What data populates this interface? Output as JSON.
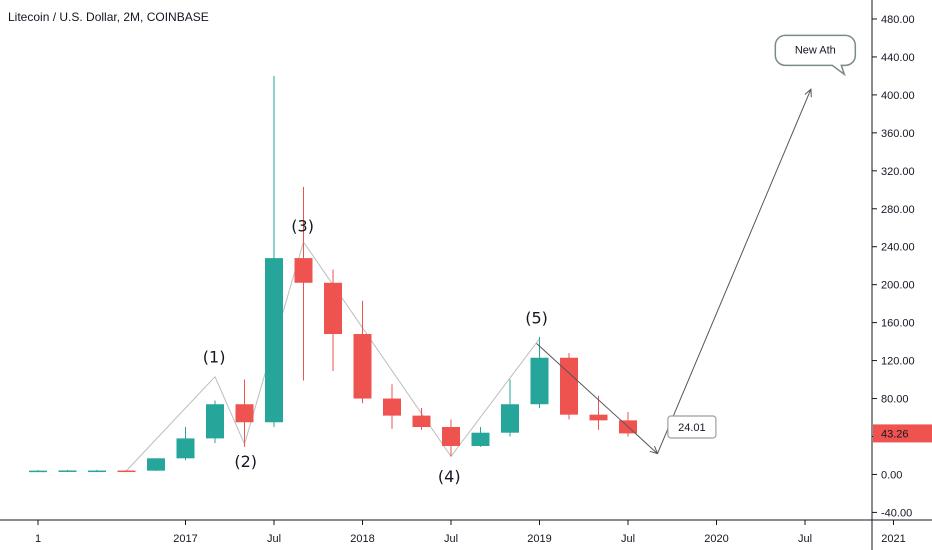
{
  "header": {
    "title": "Litecoin / U.S. Dollar, 2M, COINBASE"
  },
  "colors": {
    "up": "#26a69a",
    "down": "#ef5350",
    "axis": "#131722",
    "grid": "#e0e3eb",
    "price_tag": "#ef5350",
    "wave": "#bdbdbd",
    "arrow": "#555555"
  },
  "chart_data": {
    "type": "candlestick",
    "title": "Litecoin / U.S. Dollar, 2M, COINBASE",
    "y_axis": {
      "ticks": [
        "480.00",
        "440.00",
        "400.00",
        "360.00",
        "320.00",
        "280.00",
        "240.00",
        "200.00",
        "160.00",
        "120.00",
        "80.00",
        "40.00",
        "0.00",
        "-40.00"
      ],
      "range": [
        -48,
        500
      ]
    },
    "x_axis": {
      "ticks": [
        {
          "label": "1",
          "t": 0
        },
        {
          "label": "2017",
          "t": 5
        },
        {
          "label": "Jul",
          "t": 8
        },
        {
          "label": "2018",
          "t": 11
        },
        {
          "label": "Jul",
          "t": 14
        },
        {
          "label": "2019",
          "t": 17
        },
        {
          "label": "Jul",
          "t": 20
        },
        {
          "label": "2020",
          "t": 23
        },
        {
          "label": "Jul",
          "t": 26
        },
        {
          "label": "2021",
          "t": 29
        }
      ]
    },
    "candles": [
      {
        "t": 0,
        "open": 3.8,
        "high": 4.8,
        "low": 3.5,
        "close": 4.0
      },
      {
        "t": 1,
        "open": 3.9,
        "high": 4.8,
        "low": 3.6,
        "close": 4.2
      },
      {
        "t": 2,
        "open": 3.9,
        "high": 4.8,
        "low": 3.7,
        "close": 4.1
      },
      {
        "t": 3,
        "open": 4.1,
        "high": 4.6,
        "low": 3.8,
        "close": 3.9
      },
      {
        "t": 4,
        "open": 4.0,
        "high": 17.0,
        "low": 3.7,
        "close": 17.0
      },
      {
        "t": 5,
        "open": 17.0,
        "high": 50.0,
        "low": 15.0,
        "close": 38.0
      },
      {
        "t": 6,
        "open": 38.0,
        "high": 78.0,
        "low": 33.0,
        "close": 74.0
      },
      {
        "t": 7,
        "open": 74.0,
        "high": 100.0,
        "low": 29.0,
        "close": 55.0
      },
      {
        "t": 8,
        "open": 55.0,
        "high": 420.0,
        "low": 50.0,
        "close": 228.0
      },
      {
        "t": 9,
        "open": 228.0,
        "high": 303.0,
        "low": 99.0,
        "close": 202.0
      },
      {
        "t": 10,
        "open": 202.0,
        "high": 216.0,
        "low": 109.0,
        "close": 148.0
      },
      {
        "t": 11,
        "open": 148.0,
        "high": 183.0,
        "low": 75.0,
        "close": 80.0
      },
      {
        "t": 12,
        "open": 80.0,
        "high": 95.0,
        "low": 48.0,
        "close": 62.0
      },
      {
        "t": 13,
        "open": 62.0,
        "high": 70.0,
        "low": 47.0,
        "close": 50.0
      },
      {
        "t": 14,
        "open": 50.0,
        "high": 58.0,
        "low": 19.0,
        "close": 30.0
      },
      {
        "t": 15,
        "open": 30.0,
        "high": 50.0,
        "low": 29.0,
        "close": 44.0
      },
      {
        "t": 16,
        "open": 44.0,
        "high": 100.0,
        "low": 40.0,
        "close": 74.0
      },
      {
        "t": 17,
        "open": 74.0,
        "high": 145.0,
        "low": 70.0,
        "close": 123.0
      },
      {
        "t": 18,
        "open": 123.0,
        "high": 128.0,
        "low": 58.0,
        "close": 63.0
      },
      {
        "t": 19,
        "open": 63.0,
        "high": 83.0,
        "low": 47.0,
        "close": 57.0
      },
      {
        "t": 20,
        "open": 57.0,
        "high": 66.0,
        "low": 40.0,
        "close": 43.26
      }
    ],
    "wave_path": [
      {
        "t": 3,
        "v": 4
      },
      {
        "t": 6,
        "v": 103
      },
      {
        "t": 7,
        "v": 32
      },
      {
        "t": 9,
        "v": 245
      },
      {
        "t": 14,
        "v": 19
      },
      {
        "t": 17,
        "v": 143
      }
    ],
    "wave_labels": [
      {
        "text": "(1)",
        "t": 5.97,
        "v": 118
      },
      {
        "text": "(2)",
        "t": 7.04,
        "v": 8
      },
      {
        "text": "(3)",
        "t": 8.97,
        "v": 256
      },
      {
        "text": "(4)",
        "t": 13.94,
        "v": -8
      },
      {
        "text": "(5)",
        "t": 16.9,
        "v": 159
      }
    ],
    "arrows": [
      {
        "from": {
          "t": 16.9,
          "v": 138
        },
        "to": {
          "t": 21.0,
          "v": 22
        }
      },
      {
        "from": {
          "t": 21.0,
          "v": 22
        },
        "to": {
          "t": 26.2,
          "v": 406
        }
      }
    ],
    "callouts": [
      {
        "text": "24.01",
        "t": 22.03,
        "v": 50
      },
      {
        "text": "New Ath",
        "t": 26.35,
        "v": 448
      }
    ],
    "last_price": "43.26",
    "last_value": 43.26
  }
}
